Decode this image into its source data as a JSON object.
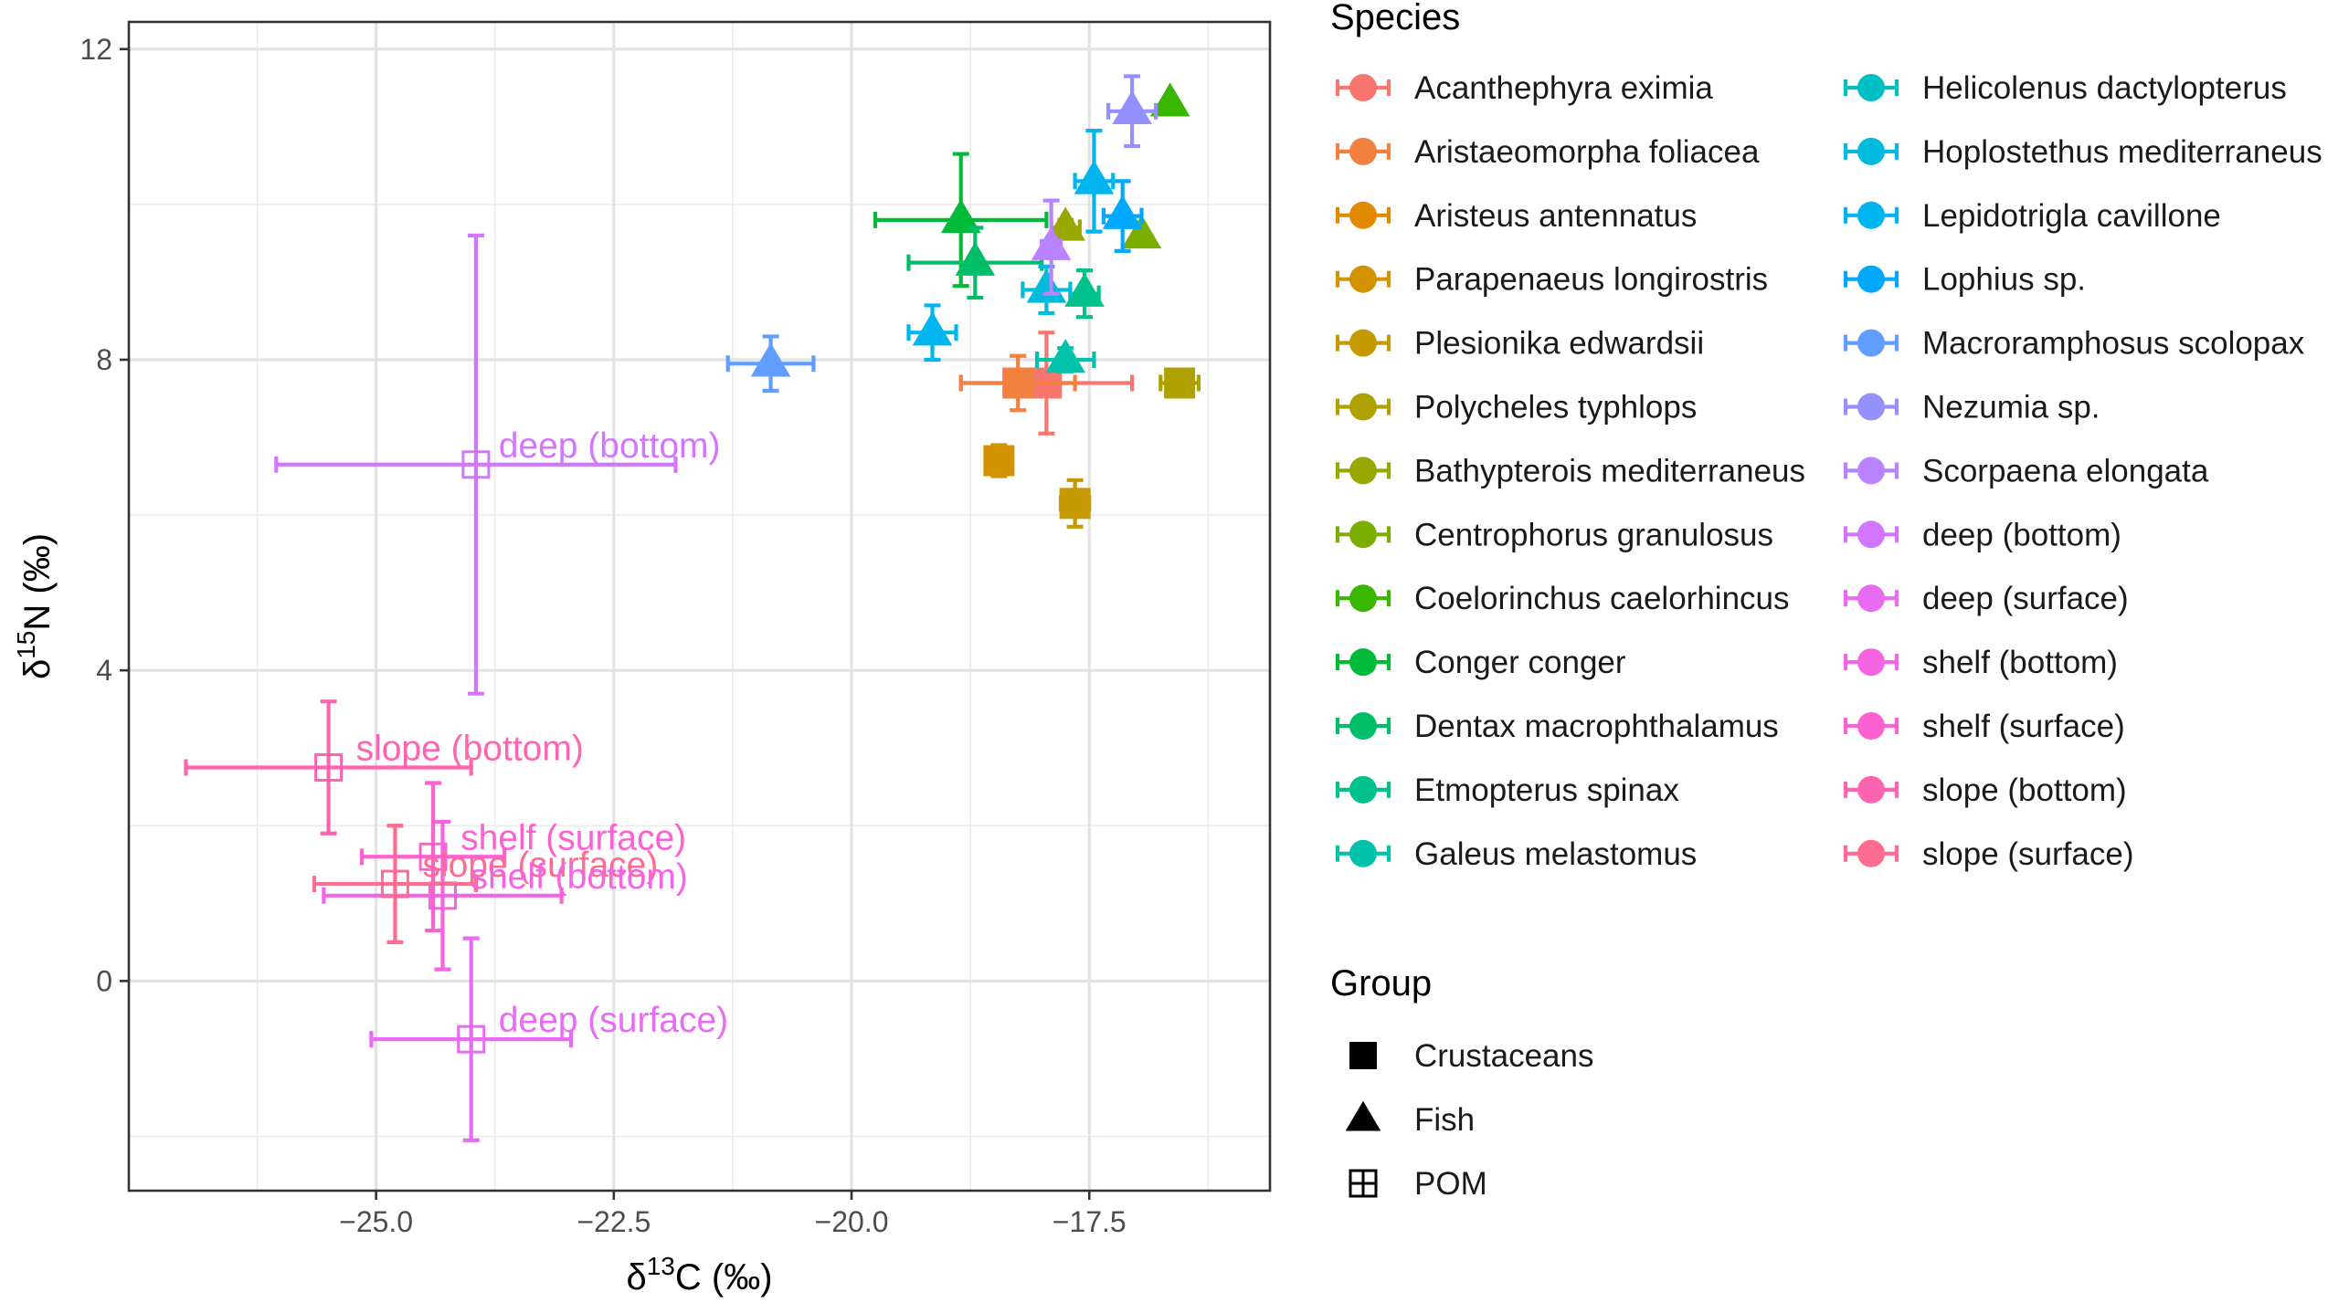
{
  "chart_data": {
    "type": "scatter",
    "title": "",
    "xlabel": "δ13C (‰)",
    "ylabel": "δ15N (‰)",
    "xlabel_parts": {
      "symbol": "δ",
      "sup": "13",
      "rest": "C (‰)"
    },
    "ylabel_parts": {
      "symbol": "δ",
      "sup": "15",
      "rest": "N (‰)"
    },
    "xlim": [
      -27.6,
      -15.6
    ],
    "ylim": [
      -2.7,
      12.35
    ],
    "x_ticks": [
      -25.0,
      -22.5,
      -20.0,
      -17.5
    ],
    "x_tick_labels": [
      "−25.0",
      "−22.5",
      "−20.0",
      "−17.5"
    ],
    "y_ticks": [
      0,
      4,
      8,
      12
    ],
    "y_tick_labels": [
      "0",
      "4",
      "8",
      "12"
    ],
    "grid": true,
    "legend_species_title": "Species",
    "legend_group_title": "Group",
    "species": [
      {
        "name": "Acanthephyra eximia",
        "color": "#F8766D"
      },
      {
        "name": "Aristaeomorpha foliacea",
        "color": "#F2803F"
      },
      {
        "name": "Aristeus antennatus",
        "color": "#E38900"
      },
      {
        "name": "Parapenaeus longirostris",
        "color": "#D39200"
      },
      {
        "name": "Plesionika edwardsii",
        "color": "#C49A00"
      },
      {
        "name": "Polycheles typhlops",
        "color": "#AFA100"
      },
      {
        "name": "Bathypterois mediterraneus",
        "color": "#99A800"
      },
      {
        "name": "Centrophorus granulosus",
        "color": "#7CAE00"
      },
      {
        "name": "Coelorinchus caelorhincus",
        "color": "#39B600"
      },
      {
        "name": "Conger conger",
        "color": "#00BA38"
      },
      {
        "name": "Dentax macrophthalamus",
        "color": "#00BE67"
      },
      {
        "name": "Etmopterus spinax",
        "color": "#00C08B"
      },
      {
        "name": "Galeus melastomus",
        "color": "#00C1AA"
      },
      {
        "name": "Helicolenus dactylopterus",
        "color": "#00BFC4"
      },
      {
        "name": "Hoplostethus mediterraneus",
        "color": "#00BBDC"
      },
      {
        "name": "Lepidotrigla cavillone",
        "color": "#00B4EF"
      },
      {
        "name": "Lophius sp.",
        "color": "#00A9FF"
      },
      {
        "name": "Macroramphosus scolopax",
        "color": "#619CFF"
      },
      {
        "name": "Nezumia sp.",
        "color": "#9590FF"
      },
      {
        "name": "Scorpaena elongata",
        "color": "#B983FF"
      },
      {
        "name": "deep (bottom)",
        "color": "#D376FF"
      },
      {
        "name": "deep (surface)",
        "color": "#E76BF3"
      },
      {
        "name": "shelf (bottom)",
        "color": "#F564E3"
      },
      {
        "name": "shelf (surface)",
        "color": "#FD61D1"
      },
      {
        "name": "slope (bottom)",
        "color": "#FF64B0"
      },
      {
        "name": "slope (surface)",
        "color": "#FF6C91"
      }
    ],
    "groups": [
      {
        "name": "Crustaceans",
        "shape": "square"
      },
      {
        "name": "Fish",
        "shape": "triangle"
      },
      {
        "name": "POM",
        "shape": "square-cross"
      }
    ],
    "points": [
      {
        "species": 0,
        "group": 0,
        "x": -17.95,
        "y": 7.7,
        "xerr": 0.9,
        "yerr": 0.65
      },
      {
        "species": 1,
        "group": 0,
        "x": -18.25,
        "y": 7.7,
        "xerr": 0.6,
        "yerr": 0.35
      },
      {
        "species": 3,
        "group": 0,
        "x": -18.45,
        "y": 6.7,
        "xerr": 0.1,
        "yerr": 0.2
      },
      {
        "species": 4,
        "group": 0,
        "x": -17.65,
        "y": 6.15,
        "xerr": 0.15,
        "yerr": 0.3
      },
      {
        "species": 5,
        "group": 0,
        "x": -16.55,
        "y": 7.7,
        "xerr": 0.2,
        "yerr": 0.15
      },
      {
        "species": 6,
        "group": 1,
        "x": -17.75,
        "y": 9.7,
        "xerr": 0.15,
        "yerr": 0.1
      },
      {
        "species": 7,
        "group": 1,
        "x": -16.95,
        "y": 9.6,
        "xerr": 0.05,
        "yerr": 0.05
      },
      {
        "species": 8,
        "group": 1,
        "x": -16.65,
        "y": 11.3,
        "xerr": 0.05,
        "yerr": 0.05
      },
      {
        "species": 9,
        "group": 1,
        "x": -18.85,
        "y": 9.8,
        "xerr": 0.9,
        "yerr": 0.85
      },
      {
        "species": 10,
        "group": 1,
        "x": -18.7,
        "y": 9.25,
        "xerr": 0.7,
        "yerr": 0.45
      },
      {
        "species": 11,
        "group": 1,
        "x": -17.55,
        "y": 8.85,
        "xerr": 0.15,
        "yerr": 0.3
      },
      {
        "species": 12,
        "group": 1,
        "x": -17.75,
        "y": 8.0,
        "xerr": 0.3,
        "yerr": 0.15
      },
      {
        "species": 14,
        "group": 1,
        "x": -17.95,
        "y": 8.9,
        "xerr": 0.25,
        "yerr": 0.3
      },
      {
        "species": 15,
        "group": 1,
        "x": -17.45,
        "y": 10.3,
        "xerr": 0.2,
        "yerr": 0.65
      },
      {
        "species": 16,
        "group": 1,
        "x": -17.15,
        "y": 9.85,
        "xerr": 0.2,
        "yerr": 0.45
      },
      {
        "species": 15,
        "group": 1,
        "x": -19.15,
        "y": 8.35,
        "xerr": 0.25,
        "yerr": 0.35
      },
      {
        "species": 17,
        "group": 1,
        "x": -20.85,
        "y": 7.95,
        "xerr": 0.45,
        "yerr": 0.35
      },
      {
        "species": 18,
        "group": 1,
        "x": -17.05,
        "y": 11.2,
        "xerr": 0.25,
        "yerr": 0.45
      },
      {
        "species": 19,
        "group": 1,
        "x": -17.9,
        "y": 9.45,
        "xerr": 0.1,
        "yerr": 0.6
      },
      {
        "species": 20,
        "group": 2,
        "x": -23.95,
        "y": 6.65,
        "xerr": 2.1,
        "yerr": 2.95
      },
      {
        "species": 21,
        "group": 2,
        "x": -24.0,
        "y": -0.75,
        "xerr": 1.05,
        "yerr": 1.3
      },
      {
        "species": 22,
        "group": 2,
        "x": -24.3,
        "y": 1.1,
        "xerr": 1.25,
        "yerr": 0.95
      },
      {
        "species": 23,
        "group": 2,
        "x": -24.4,
        "y": 1.6,
        "xerr": 0.75,
        "yerr": 0.95
      },
      {
        "species": 24,
        "group": 2,
        "x": -25.5,
        "y": 2.75,
        "xerr": 1.5,
        "yerr": 0.85
      },
      {
        "species": 25,
        "group": 2,
        "x": -24.8,
        "y": 1.25,
        "xerr": 0.85,
        "yerr": 0.75
      }
    ],
    "annotations": [
      {
        "text": "deep (bottom)",
        "species": 20,
        "x": -24.0,
        "y": 6.65
      },
      {
        "text": "slope (bottom)",
        "species": 24,
        "x": -25.5,
        "y": 2.75
      },
      {
        "text": "shelf (surface)",
        "species": 23,
        "x": -24.4,
        "y": 1.6
      },
      {
        "text": "slope (surface)",
        "species": 25,
        "x": -24.8,
        "y": 1.25
      },
      {
        "text": "shelf (bottom)",
        "species": 22,
        "x": -24.3,
        "y": 1.1
      },
      {
        "text": "deep (surface)",
        "species": 21,
        "x": -24.0,
        "y": -0.75
      }
    ]
  }
}
